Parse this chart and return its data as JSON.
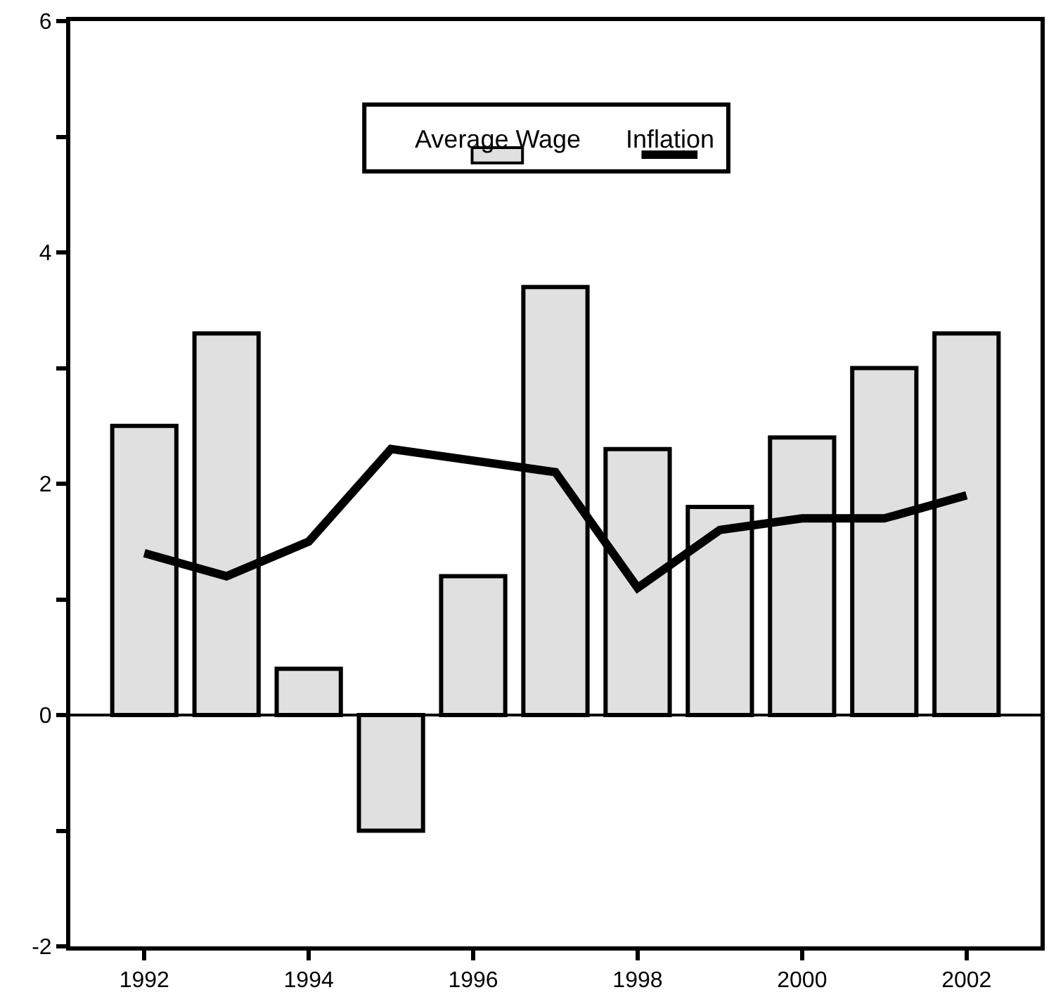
{
  "chart_data": {
    "type": "bar",
    "x": [
      1992,
      1993,
      1994,
      1995,
      1996,
      1997,
      1998,
      1999,
      2000,
      2001,
      2002
    ],
    "series": [
      {
        "name": "Average Wage",
        "color": "#e0e0e0",
        "values": [
          2.5,
          3.3,
          0.4,
          -1.0,
          1.2,
          3.7,
          2.3,
          1.8,
          2.4,
          3.0,
          3.3
        ]
      },
      {
        "name": "Inflation",
        "type": "line",
        "color": "#000000",
        "values": [
          1.4,
          1.2,
          1.5,
          2.3,
          2.2,
          2.1,
          1.1,
          1.6,
          1.7,
          1.7,
          1.9
        ]
      }
    ],
    "xlim": [
      1991.1,
      2002.9
    ],
    "xticks": [
      1992,
      1994,
      1996,
      1998,
      2000,
      2002
    ],
    "ylim": [
      -2,
      6
    ],
    "yticks": [
      -2,
      {
        "value": -1,
        "label": null
      },
      0,
      {
        "value": 1,
        "label": null
      },
      2,
      {
        "value": 3,
        "label": null
      },
      4,
      {
        "value": 5,
        "label": null
      },
      6
    ],
    "ref_lines": [
      {
        "axis": "y",
        "value": 0,
        "color": "#000000"
      }
    ],
    "grid": false,
    "legend": "top",
    "marker": "none",
    "line_style": "solid"
  }
}
